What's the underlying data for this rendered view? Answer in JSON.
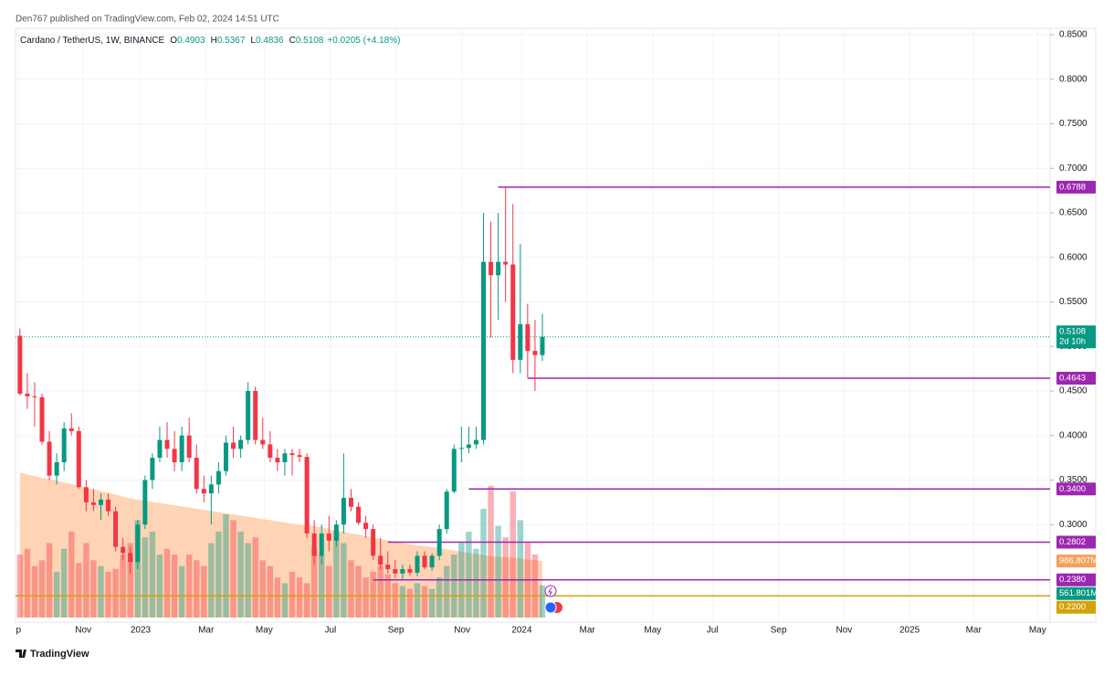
{
  "header": "Den767 published on TradingView.com, Feb 02, 2024 14:51 UTC",
  "footer": "TradingView",
  "chart_data": {
    "type": "candlestick",
    "legend": {
      "symbol": "Cardano / TetherUS, 1W, BINANCE",
      "fields": [
        {
          "label": "O",
          "value": 0.4903
        },
        {
          "label": "H",
          "value": 0.5367
        },
        {
          "label": "L",
          "value": 0.4836
        },
        {
          "label": "C",
          "value": 0.5108
        }
      ],
      "change": "+0.0205 (+4.18%)"
    },
    "up_color": "#089981",
    "down_color": "#f23645",
    "x": [
      0,
      1,
      2,
      3,
      4,
      5,
      6,
      7,
      8,
      9,
      10,
      11,
      12,
      13,
      14,
      15,
      16,
      17,
      18,
      19,
      20,
      21,
      22,
      23,
      24,
      25,
      26,
      27,
      28,
      29,
      30,
      31,
      32,
      33,
      34,
      35,
      36,
      37,
      38,
      39,
      40,
      41,
      42,
      43,
      44,
      45,
      46,
      47,
      48,
      49,
      50,
      51,
      52,
      53,
      54,
      55,
      56,
      57,
      58,
      59,
      60,
      61,
      62,
      63,
      64,
      65,
      66,
      67,
      68,
      69,
      70,
      71
    ],
    "open": [
      0.512,
      0.447,
      0.444,
      0.443,
      0.393,
      0.355,
      0.37,
      0.408,
      0.405,
      0.342,
      0.325,
      0.322,
      0.328,
      0.315,
      0.275,
      0.268,
      0.258,
      0.3,
      0.35,
      0.375,
      0.395,
      0.385,
      0.37,
      0.4,
      0.375,
      0.34,
      0.335,
      0.345,
      0.36,
      0.392,
      0.385,
      0.395,
      0.45,
      0.395,
      0.39,
      0.375,
      0.37,
      0.38,
      0.378,
      0.376,
      0.29,
      0.265,
      0.29,
      0.282,
      0.3,
      0.33,
      0.32,
      0.302,
      0.295,
      0.265,
      0.255,
      0.25,
      0.245,
      0.25,
      0.246,
      0.265,
      0.252,
      0.265,
      0.295,
      0.337,
      0.385,
      0.386,
      0.39,
      0.395,
      0.595,
      0.58,
      0.595,
      0.592,
      0.485,
      0.525,
      0.495,
      0.4903
    ],
    "high": [
      0.52,
      0.47,
      0.46,
      0.447,
      0.405,
      0.38,
      0.415,
      0.425,
      0.41,
      0.35,
      0.34,
      0.335,
      0.335,
      0.32,
      0.285,
      0.275,
      0.305,
      0.355,
      0.38,
      0.41,
      0.415,
      0.405,
      0.41,
      0.42,
      0.39,
      0.355,
      0.355,
      0.37,
      0.4,
      0.41,
      0.4,
      0.46,
      0.455,
      0.42,
      0.405,
      0.385,
      0.385,
      0.385,
      0.385,
      0.38,
      0.305,
      0.3,
      0.31,
      0.305,
      0.38,
      0.34,
      0.325,
      0.31,
      0.3,
      0.285,
      0.27,
      0.26,
      0.255,
      0.255,
      0.27,
      0.27,
      0.268,
      0.3,
      0.34,
      0.39,
      0.41,
      0.41,
      0.41,
      0.65,
      0.64,
      0.65,
      0.6788,
      0.66,
      0.615,
      0.548,
      0.53,
      0.5367
    ],
    "low": [
      0.445,
      0.43,
      0.41,
      0.39,
      0.35,
      0.345,
      0.36,
      0.4,
      0.34,
      0.315,
      0.315,
      0.305,
      0.31,
      0.27,
      0.26,
      0.245,
      0.25,
      0.295,
      0.34,
      0.37,
      0.375,
      0.36,
      0.36,
      0.37,
      0.335,
      0.325,
      0.3,
      0.335,
      0.355,
      0.375,
      0.375,
      0.39,
      0.39,
      0.385,
      0.37,
      0.36,
      0.355,
      0.355,
      0.37,
      0.285,
      0.255,
      0.255,
      0.27,
      0.275,
      0.29,
      0.315,
      0.3,
      0.285,
      0.26,
      0.25,
      0.245,
      0.24,
      0.238,
      0.243,
      0.242,
      0.25,
      0.248,
      0.26,
      0.29,
      0.335,
      0.37,
      0.38,
      0.385,
      0.39,
      0.51,
      0.53,
      0.55,
      0.47,
      0.47,
      0.4643,
      0.45,
      0.4836
    ],
    "close": [
      0.447,
      0.444,
      0.443,
      0.393,
      0.355,
      0.37,
      0.408,
      0.405,
      0.342,
      0.325,
      0.322,
      0.328,
      0.315,
      0.275,
      0.268,
      0.258,
      0.3,
      0.35,
      0.375,
      0.395,
      0.385,
      0.37,
      0.4,
      0.375,
      0.34,
      0.335,
      0.345,
      0.36,
      0.392,
      0.385,
      0.395,
      0.45,
      0.395,
      0.39,
      0.375,
      0.37,
      0.38,
      0.378,
      0.376,
      0.29,
      0.265,
      0.29,
      0.282,
      0.3,
      0.33,
      0.32,
      0.302,
      0.295,
      0.265,
      0.255,
      0.25,
      0.245,
      0.25,
      0.246,
      0.265,
      0.252,
      0.265,
      0.295,
      0.337,
      0.385,
      0.386,
      0.39,
      0.395,
      0.595,
      0.58,
      0.595,
      0.592,
      0.485,
      0.525,
      0.495,
      0.4903,
      0.5108
    ],
    "volume": {
      "values": [
        1100,
        1200,
        900,
        1000,
        1300,
        800,
        1200,
        1500,
        950,
        1300,
        1000,
        900,
        800,
        850,
        1100,
        1300,
        1700,
        1400,
        1500,
        1100,
        1200,
        1100,
        900,
        1100,
        1000,
        900,
        1300,
        1500,
        1800,
        1700,
        1500,
        1300,
        1400,
        1000,
        900,
        700,
        600,
        800,
        700,
        600,
        1200,
        1100,
        900,
        1500,
        1300,
        1000,
        900,
        700,
        800,
        900,
        750,
        600,
        550,
        500,
        600,
        550,
        500,
        700,
        900,
        1100,
        1300,
        1500,
        1200,
        1900,
        2300,
        1600,
        1400,
        2200,
        1700,
        1300,
        1100,
        561.801
      ],
      "ma": [
        2530,
        2500,
        2470,
        2440,
        2420,
        2390,
        2360,
        2330,
        2300,
        2270,
        2240,
        2210,
        2180,
        2150,
        2110,
        2080,
        2060,
        2040,
        2020,
        2000,
        1980,
        1960,
        1940,
        1920,
        1900,
        1880,
        1860,
        1840,
        1820,
        1800,
        1780,
        1760,
        1740,
        1720,
        1700,
        1680,
        1660,
        1640,
        1620,
        1610,
        1600,
        1580,
        1550,
        1520,
        1500,
        1470,
        1450,
        1420,
        1400,
        1370,
        1350,
        1320,
        1300,
        1280,
        1260,
        1250,
        1230,
        1210,
        1190,
        1170,
        1150,
        1130,
        1110,
        1090,
        1070,
        1060,
        1050,
        1040,
        1030,
        1010,
        1000,
        986.807
      ],
      "ma_label": "986.807M",
      "last_label": "561.801M",
      "vlim": [
        0,
        2600
      ],
      "ma_color": "#ffcca8",
      "label_color": "#f5a05a"
    },
    "last_price": {
      "value": 0.5108,
      "countdown": "2d 10h"
    },
    "levels": [
      {
        "value": 0.6788,
        "label": "0.6788",
        "from": 65,
        "color": "#9c27b0"
      },
      {
        "value": 0.4643,
        "label": "0.4643",
        "from": 69,
        "color": "#9c27b0"
      },
      {
        "value": 0.34,
        "label": "0.3400",
        "from": 61,
        "color": "#9c27b0"
      },
      {
        "value": 0.2802,
        "label": "0.2802",
        "from": 50,
        "color": "#9c27b0"
      },
      {
        "value": 0.238,
        "label": "0.2380",
        "from": 48,
        "color": "#9c27b0"
      },
      {
        "value": 0.22,
        "label": "0.2200",
        "color": "#d4a20c"
      }
    ],
    "ylim": [
      0.1905,
      0.8572
    ],
    "yticks": [
      {
        "value": 0.3,
        "label": "0.3000"
      },
      {
        "value": 0.35,
        "label": "0.3500"
      },
      {
        "value": 0.4,
        "label": "0.4000"
      },
      {
        "value": 0.45,
        "label": "0.4500"
      },
      {
        "value": 0.5,
        "label": "0.5000"
      },
      {
        "value": 0.55,
        "label": "0.5500"
      },
      {
        "value": 0.6,
        "label": "0.6000"
      },
      {
        "value": 0.65,
        "label": "0.6500"
      },
      {
        "value": 0.7,
        "label": "0.7000"
      },
      {
        "value": 0.75,
        "label": "0.7500"
      },
      {
        "value": 0.8,
        "label": "0.8000"
      },
      {
        "value": 0.85,
        "label": "0.8500"
      }
    ],
    "xlim": [
      -0.6,
      140
    ],
    "xticks": [
      {
        "value": -0.2,
        "label": "p"
      },
      {
        "value": 8.6,
        "label": "Nov"
      },
      {
        "value": 16.4,
        "label": "2023"
      },
      {
        "value": 25.3,
        "label": "Mar"
      },
      {
        "value": 33.2,
        "label": "May"
      },
      {
        "value": 42.2,
        "label": "Jul"
      },
      {
        "value": 51.1,
        "label": "Sep"
      },
      {
        "value": 60.1,
        "label": "Nov"
      },
      {
        "value": 68.2,
        "label": "2024"
      },
      {
        "value": 77.1,
        "label": "Mar"
      },
      {
        "value": 86.0,
        "label": "May"
      },
      {
        "value": 94.1,
        "label": "Jul"
      },
      {
        "value": 103.1,
        "label": "Sep"
      },
      {
        "value": 112.0,
        "label": "Nov"
      },
      {
        "value": 120.9,
        "label": "2025"
      },
      {
        "value": 129.6,
        "label": "Mar"
      },
      {
        "value": 138.3,
        "label": "May"
      }
    ],
    "grid": true
  }
}
